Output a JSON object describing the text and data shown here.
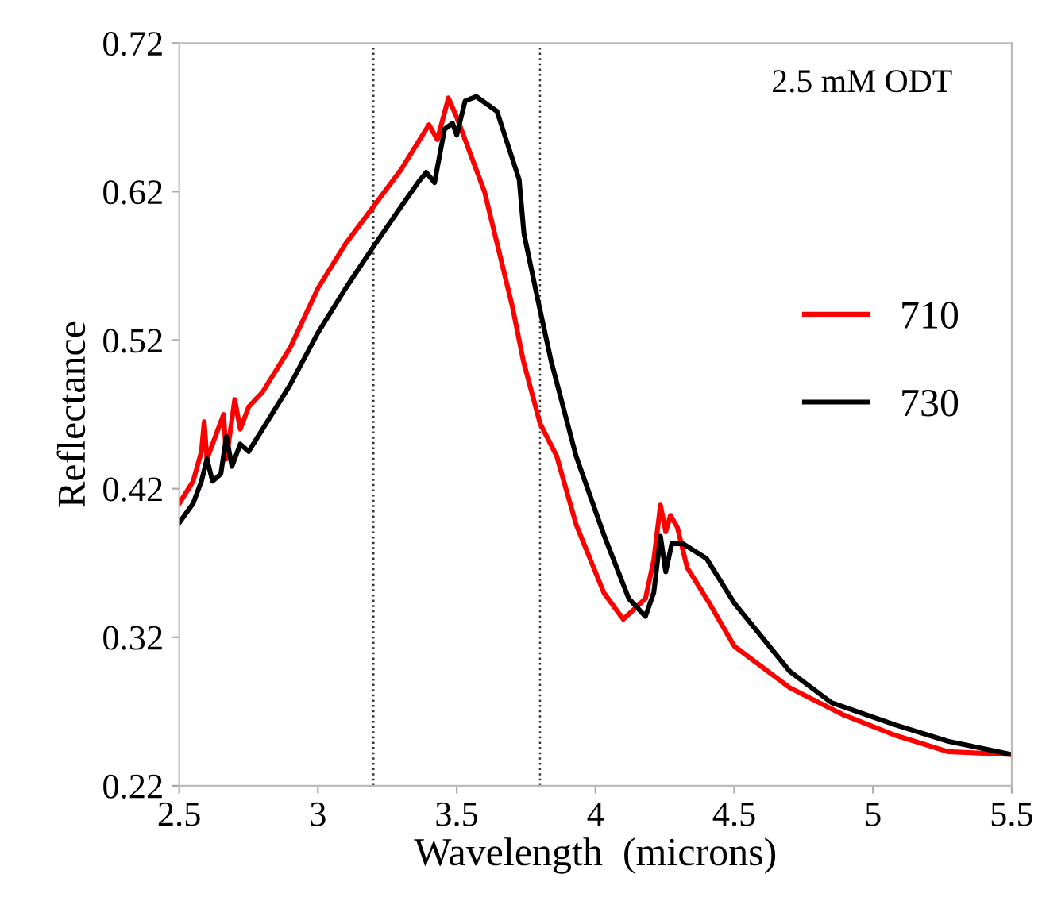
{
  "chart_data": {
    "type": "line",
    "xlabel": "Wavelength  (microns)",
    "ylabel": "Reflectance",
    "annotations": [
      "2.5 mM ODT"
    ],
    "xlim": [
      2.5,
      5.5
    ],
    "xticks": [
      2.5,
      3,
      3.5,
      4,
      4.5,
      5,
      5.5
    ],
    "ylim": [
      0.22,
      0.72
    ],
    "yticks": [
      0.22,
      0.32,
      0.42,
      0.52,
      0.62,
      0.72
    ],
    "grid": false,
    "legend": "right",
    "marker": "none",
    "line_style": "solid",
    "ref_lines": [
      {
        "axis": "x",
        "value": 3.2,
        "label": null,
        "color": "#333333",
        "line_style": "dotted"
      },
      {
        "axis": "x",
        "value": 3.8,
        "label": null,
        "color": "#333333",
        "line_style": "dotted"
      }
    ],
    "series": [
      {
        "name": "710",
        "color": "#ff0000",
        "x": [
          2.5,
          2.55,
          2.58,
          2.59,
          2.6,
          2.63,
          2.66,
          2.67,
          2.7,
          2.72,
          2.75,
          2.8,
          2.9,
          3.0,
          3.1,
          3.2,
          3.3,
          3.4,
          3.43,
          3.47,
          3.5,
          3.55,
          3.6,
          3.7,
          3.74,
          3.8,
          3.86,
          3.93,
          4.03,
          4.1,
          4.18,
          4.21,
          4.234,
          4.253,
          4.27,
          4.295,
          4.33,
          4.41,
          4.5,
          4.7,
          4.89,
          5.08,
          5.27,
          5.5
        ],
        "values": [
          0.41,
          0.425,
          0.445,
          0.465,
          0.44,
          0.455,
          0.47,
          0.44,
          0.48,
          0.46,
          0.475,
          0.485,
          0.515,
          0.555,
          0.585,
          0.61,
          0.635,
          0.665,
          0.655,
          0.683,
          0.67,
          0.645,
          0.62,
          0.543,
          0.506,
          0.464,
          0.442,
          0.396,
          0.35,
          0.332,
          0.346,
          0.372,
          0.409,
          0.391,
          0.402,
          0.394,
          0.367,
          0.343,
          0.314,
          0.286,
          0.268,
          0.254,
          0.243,
          0.241
        ]
      },
      {
        "name": "730",
        "color": "#000000",
        "x": [
          2.5,
          2.55,
          2.58,
          2.6,
          2.62,
          2.65,
          2.67,
          2.69,
          2.72,
          2.75,
          2.8,
          2.9,
          3.0,
          3.1,
          3.2,
          3.3,
          3.36,
          3.39,
          3.42,
          3.456,
          3.485,
          3.5,
          3.53,
          3.57,
          3.645,
          3.725,
          3.742,
          3.79,
          3.84,
          3.93,
          4.03,
          4.12,
          4.18,
          4.21,
          4.234,
          4.253,
          4.275,
          4.315,
          4.4,
          4.5,
          4.7,
          4.85,
          5.08,
          5.27,
          5.5
        ],
        "values": [
          0.397,
          0.41,
          0.425,
          0.44,
          0.425,
          0.43,
          0.455,
          0.435,
          0.45,
          0.445,
          0.46,
          0.49,
          0.525,
          0.555,
          0.583,
          0.61,
          0.626,
          0.633,
          0.626,
          0.662,
          0.666,
          0.658,
          0.681,
          0.684,
          0.674,
          0.628,
          0.592,
          0.549,
          0.506,
          0.442,
          0.389,
          0.346,
          0.334,
          0.35,
          0.388,
          0.364,
          0.383,
          0.383,
          0.373,
          0.343,
          0.297,
          0.276,
          0.261,
          0.25,
          0.241
        ]
      }
    ]
  }
}
